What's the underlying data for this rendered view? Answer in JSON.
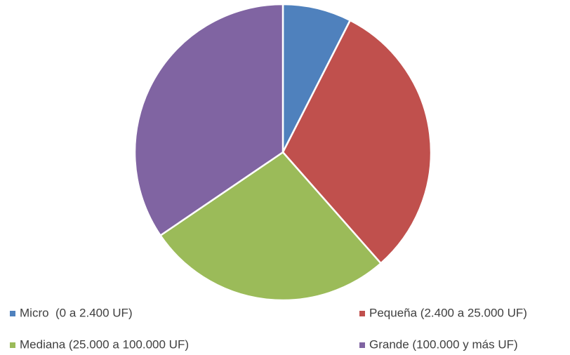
{
  "chart_data": {
    "type": "pie",
    "categories": [
      "Micro  (0 a 2.400 UF)",
      "Pequeña (2.400 a 25.000 UF)",
      "Mediana (25.000 a 100.000 UF)",
      "Grande (100.000 y más UF)"
    ],
    "values": [
      7.5,
      31,
      27,
      34.5
    ],
    "colors": [
      "#4f81bd",
      "#c0504d",
      "#9bbb59",
      "#8064a2"
    ],
    "legend": "bottom"
  }
}
